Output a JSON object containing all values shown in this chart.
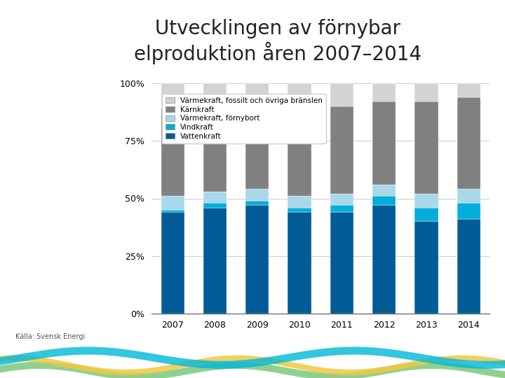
{
  "title": "Utvecklingen av förnybar\nelproduktion åren 2007–2014",
  "source": "Källa: Svensk Energi",
  "years": [
    2007,
    2008,
    2009,
    2010,
    2011,
    2012,
    2013,
    2014
  ],
  "categories": [
    "Vattenkraft",
    "Vindkraft",
    "Värmekraft, förnybort",
    "Kärnkraft",
    "Värmekraft, fossilt och övriga bränslen"
  ],
  "colors": [
    "#005b96",
    "#00aedb",
    "#a8d8ea",
    "#808080",
    "#d3d3d3"
  ],
  "data": {
    "Vattenkraft": [
      44,
      46,
      47,
      44,
      44,
      47,
      40,
      41
    ],
    "Vindkraft": [
      1,
      2,
      2,
      2,
      3,
      4,
      6,
      7
    ],
    "Värmekraft, förnybort": [
      6,
      5,
      5,
      5,
      5,
      5,
      6,
      6
    ],
    "Kärnkraft": [
      38,
      37,
      37,
      38,
      38,
      36,
      40,
      40
    ],
    "Värmekraft, fossilt och övriga bränslen": [
      11,
      10,
      9,
      11,
      10,
      8,
      8,
      6
    ]
  },
  "yticks": [
    0,
    25,
    50,
    75,
    100
  ],
  "ytick_labels": [
    "0%",
    "25%",
    "50%",
    "75%",
    "100%"
  ],
  "background_color": "#ffffff",
  "bar_width": 0.55,
  "legend_fontsize": 7.5,
  "title_fontsize": 20,
  "source_fontsize": 7,
  "axis_fontsize": 9,
  "grid_color": "#cccccc"
}
